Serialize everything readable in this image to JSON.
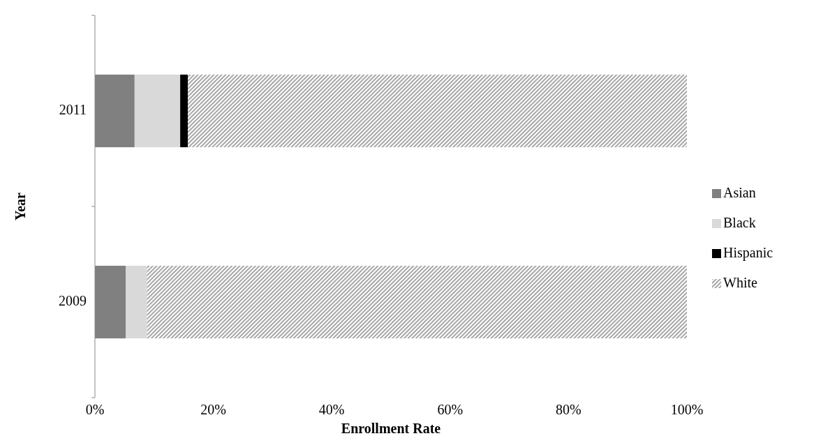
{
  "chart_data": {
    "type": "bar",
    "orientation": "horizontal",
    "stacked": true,
    "xlabel": "Enrollment Rate",
    "ylabel": "Year",
    "categories": [
      "2011",
      "2009"
    ],
    "series": [
      {
        "name": "Asian",
        "color": "#808080",
        "values": [
          6.7,
          5.2
        ]
      },
      {
        "name": "Black",
        "color": "#d9d9d9",
        "values": [
          7.7,
          3.6
        ]
      },
      {
        "name": "Hispanic",
        "color": "#000000",
        "values": [
          1.3,
          0
        ]
      },
      {
        "name": "White",
        "color": "#a6a6a6",
        "values": [
          84.3,
          91.2
        ]
      }
    ],
    "xlim": [
      0,
      100
    ],
    "xticks": [
      {
        "value": 0,
        "label": "0%"
      },
      {
        "value": 20,
        "label": "20%"
      },
      {
        "value": 40,
        "label": "40%"
      },
      {
        "value": 60,
        "label": "60%"
      },
      {
        "value": 80,
        "label": "80%"
      },
      {
        "value": 100,
        "label": "100%"
      }
    ],
    "grid": false,
    "legend": "right"
  }
}
